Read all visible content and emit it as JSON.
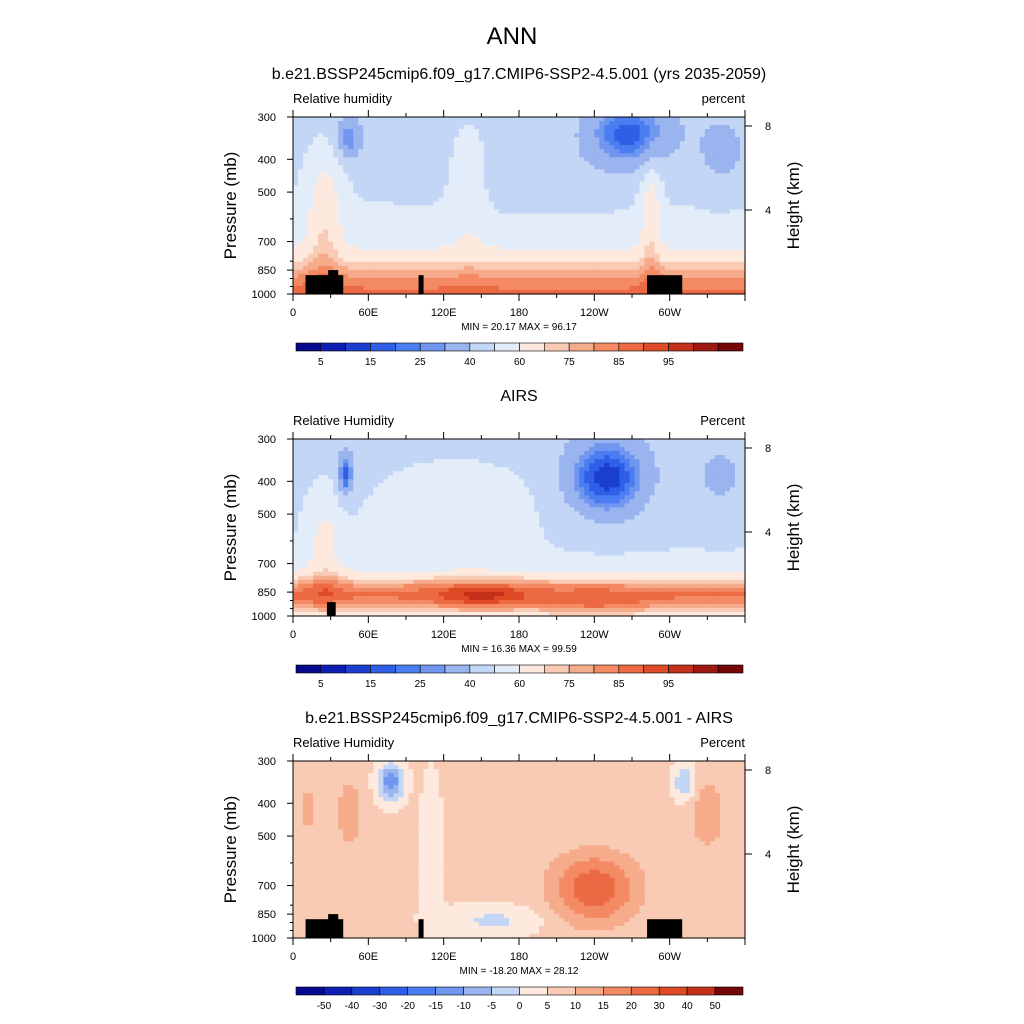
{
  "page_title": "ANN",
  "chart_data": [
    {
      "type": "heatmap",
      "title": "b.e21.BSSP245cmip6.f09_g17.CMIP6-SSP2-4.5.001 (yrs 2035-2059)",
      "left_label": "Relative humidity",
      "right_label": "percent",
      "ylabel": "Pressure (mb)",
      "ylabel_right": "Height (km)",
      "x_ticks": [
        "0",
        "60E",
        "120E",
        "180",
        "120W",
        "60W"
      ],
      "y_ticks": [
        "300",
        "400",
        "500",
        "700",
        "850",
        "1000"
      ],
      "height_ticks": [
        "8",
        "4"
      ],
      "stats": "MIN =  20.17  MAX =  96.17",
      "min": 20.17,
      "max": 96.17,
      "colorbar_labels": [
        "5",
        "15",
        "25",
        "40",
        "60",
        "75",
        "85",
        "95"
      ],
      "colorbar_levels": [
        5,
        10,
        15,
        20,
        25,
        30,
        40,
        50,
        60,
        70,
        75,
        80,
        85,
        90,
        95
      ],
      "mask_terrain": true
    },
    {
      "type": "heatmap",
      "title": "AIRS",
      "left_label": "Relative Humidity",
      "right_label": "Percent",
      "ylabel": "Pressure (mb)",
      "ylabel_right": "Height (km)",
      "x_ticks": [
        "0",
        "60E",
        "120E",
        "180",
        "120W",
        "60W"
      ],
      "y_ticks": [
        "300",
        "400",
        "500",
        "700",
        "850",
        "1000"
      ],
      "height_ticks": [
        "8",
        "4"
      ],
      "stats": "MIN =  16.36  MAX =  99.59",
      "min": 16.36,
      "max": 99.59,
      "colorbar_labels": [
        "5",
        "15",
        "25",
        "40",
        "60",
        "75",
        "85",
        "95"
      ],
      "colorbar_levels": [
        5,
        10,
        15,
        20,
        25,
        30,
        40,
        50,
        60,
        70,
        75,
        80,
        85,
        90,
        95
      ],
      "mask_terrain": false
    },
    {
      "type": "heatmap",
      "title": "b.e21.BSSP245cmip6.f09_g17.CMIP6-SSP2-4.5.001 - AIRS",
      "left_label": "Relative Humidity",
      "right_label": "Percent",
      "ylabel": "Pressure (mb)",
      "ylabel_right": "Height (km)",
      "x_ticks": [
        "0",
        "60E",
        "120E",
        "180",
        "120W",
        "60W"
      ],
      "y_ticks": [
        "300",
        "400",
        "500",
        "700",
        "850",
        "1000"
      ],
      "height_ticks": [
        "8",
        "4"
      ],
      "stats": "MIN = -18.20  MAX =  28.12",
      "min": -18.2,
      "max": 28.12,
      "colorbar_labels": [
        "-50",
        "-40",
        "-30",
        "-20",
        "-15",
        "-10",
        "-5",
        "0",
        "5",
        "10",
        "15",
        "20",
        "30",
        "40",
        "50"
      ],
      "colorbar_levels": [
        -50,
        -40,
        -30,
        -20,
        -15,
        -10,
        -5,
        0,
        5,
        10,
        15,
        20,
        30,
        40,
        50
      ],
      "mask_terrain": true
    }
  ],
  "colors": {
    "palette": [
      "#08088f",
      "#0d1eb1",
      "#1a3fd0",
      "#2f5fe6",
      "#4a7df2",
      "#7096f0",
      "#9ab4f0",
      "#c3d6f5",
      "#e3edfa",
      "#fde9de",
      "#f9cbb4",
      "#f6ab8b",
      "#f38a63",
      "#ec6a43",
      "#df4a26",
      "#c5301a",
      "#9f1a10",
      "#760707"
    ],
    "diff_palette": [
      "#08088f",
      "#0d1eb1",
      "#1a3fd0",
      "#2f5fe6",
      "#4a7df2",
      "#7096f0",
      "#9ab4f0",
      "#c3d6f5",
      "#fde9de",
      "#f9cbb4",
      "#f6ab8b",
      "#f38a63",
      "#ec6a43",
      "#df4a26",
      "#c5301a",
      "#760707"
    ],
    "terrain": "#000000"
  }
}
